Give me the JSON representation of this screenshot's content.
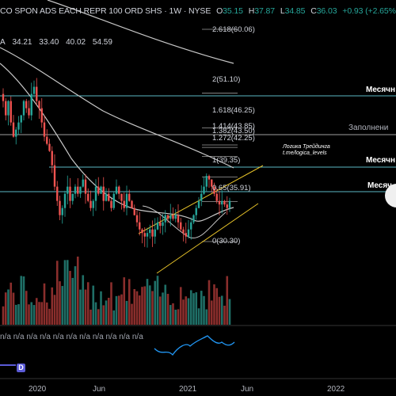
{
  "header": {
    "symbol": "CO SPON ADS EACH REPR 100 ORD SHS · 1W · NYSE",
    "open_label": "O",
    "open": "35.15",
    "high_label": "H",
    "high": "37.87",
    "low_label": "L",
    "low": "34.85",
    "close_label": "C",
    "close": "36.03",
    "change": "+0.93 (+2.65%)"
  },
  "ma_row": {
    "label": "A",
    "values": [
      "34.21",
      "33.40",
      "40.02",
      "54.59"
    ]
  },
  "fib_labels": [
    "2.618(60.06)",
    "2(51.10)",
    "1.618(46.25)",
    "1.414(43.85)",
    "1.382(43.50)",
    "1.272(42.25)",
    "1(39.35)",
    "0.65(35.91)",
    "0(30.30)"
  ],
  "level_labels": [
    "Месячн",
    "Заполнени",
    "Месячн",
    "Месяч"
  ],
  "watermark": [
    "Логика Трейдинга",
    "t.me/logica_levels"
  ],
  "x_axis": [
    "2020",
    "Jun",
    "2021",
    "Jun",
    "2022"
  ],
  "oscillator": {
    "na_text": "n/a",
    "badge": "D"
  },
  "colors": {
    "up": "#26a69a",
    "down": "#ef5350",
    "cyan_line": "#5ab8c4",
    "channel": "#e6c229",
    "ma": "#d1d4dc"
  },
  "chart_data": {
    "type": "candlestick",
    "fib_levels": [
      {
        "ratio": 2.618,
        "price": 60.06
      },
      {
        "ratio": 2,
        "price": 51.1
      },
      {
        "ratio": 1.618,
        "price": 46.25
      },
      {
        "ratio": 1.414,
        "price": 43.85
      },
      {
        "ratio": 1.382,
        "price": 43.5
      },
      {
        "ratio": 1.272,
        "price": 42.25
      },
      {
        "ratio": 1,
        "price": 39.35
      },
      {
        "ratio": 0.65,
        "price": 35.91
      },
      {
        "ratio": 0,
        "price": 30.3
      }
    ],
    "closes": [
      50,
      48,
      50,
      47,
      45,
      46,
      47,
      48,
      50,
      49,
      48,
      51,
      52,
      50,
      49,
      47,
      45,
      44,
      43,
      41,
      38,
      36,
      34,
      35,
      37,
      38,
      36,
      37,
      38,
      37,
      38,
      39,
      37,
      36,
      35,
      36,
      38,
      37,
      38,
      36,
      37,
      36,
      35,
      37,
      38,
      37,
      36,
      35,
      37,
      36,
      35,
      34,
      33,
      32,
      31.5,
      31,
      31.5,
      32,
      31,
      32,
      33,
      32.5,
      33,
      34,
      33.5,
      34,
      33.5,
      34,
      33,
      32,
      31.5,
      31,
      32,
      33,
      34,
      35,
      36,
      37,
      38,
      39.5,
      39,
      38,
      37,
      36,
      35.5,
      36,
      35.5,
      35,
      36
    ]
  }
}
